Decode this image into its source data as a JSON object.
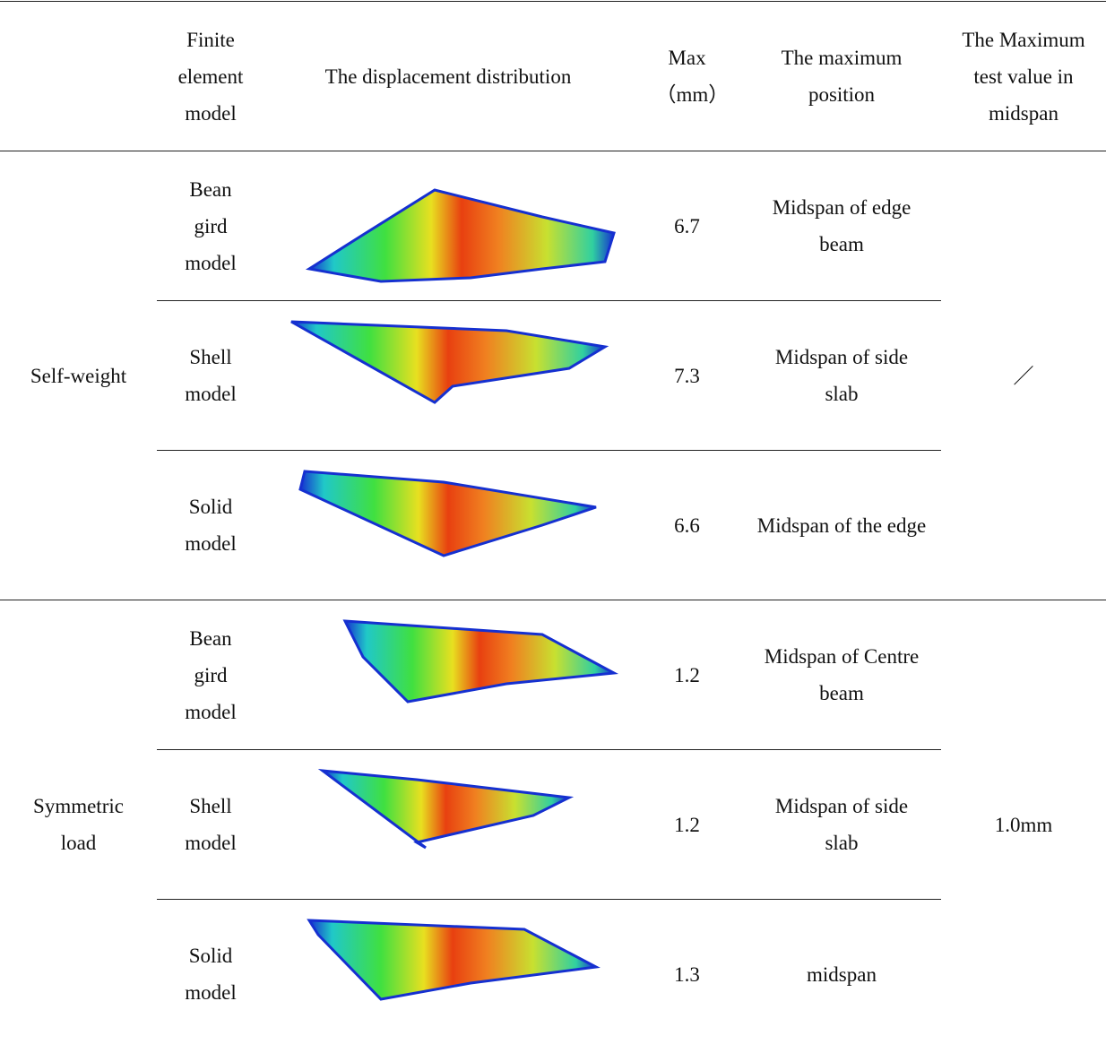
{
  "header": {
    "columns": [
      "Finite element model",
      "The displacement distribution",
      "Max（mm）",
      "The maximum position",
      "The Maximum test value in midspan"
    ]
  },
  "groups": [
    {
      "label": "Self-weight",
      "test_value": "／",
      "rows": [
        {
          "model": "Bean gird model",
          "max": 6.7,
          "position": "Midspan of edge beam"
        },
        {
          "model": "Shell model",
          "max": 7.3,
          "position": "Midspan of side slab"
        },
        {
          "model": "Solid model",
          "max": 6.6,
          "position": "Midspan of the edge"
        }
      ]
    },
    {
      "label": "Symmetric load",
      "test_value": "1.0mm",
      "rows": [
        {
          "model": "Bean gird model",
          "max": 1.2,
          "position": "Midspan of Centre beam"
        },
        {
          "model": "Shell model",
          "max": 1.2,
          "position": "Midspan of side slab"
        },
        {
          "model": "Solid model",
          "max": 1.3,
          "position": "midspan"
        }
      ]
    }
  ]
}
